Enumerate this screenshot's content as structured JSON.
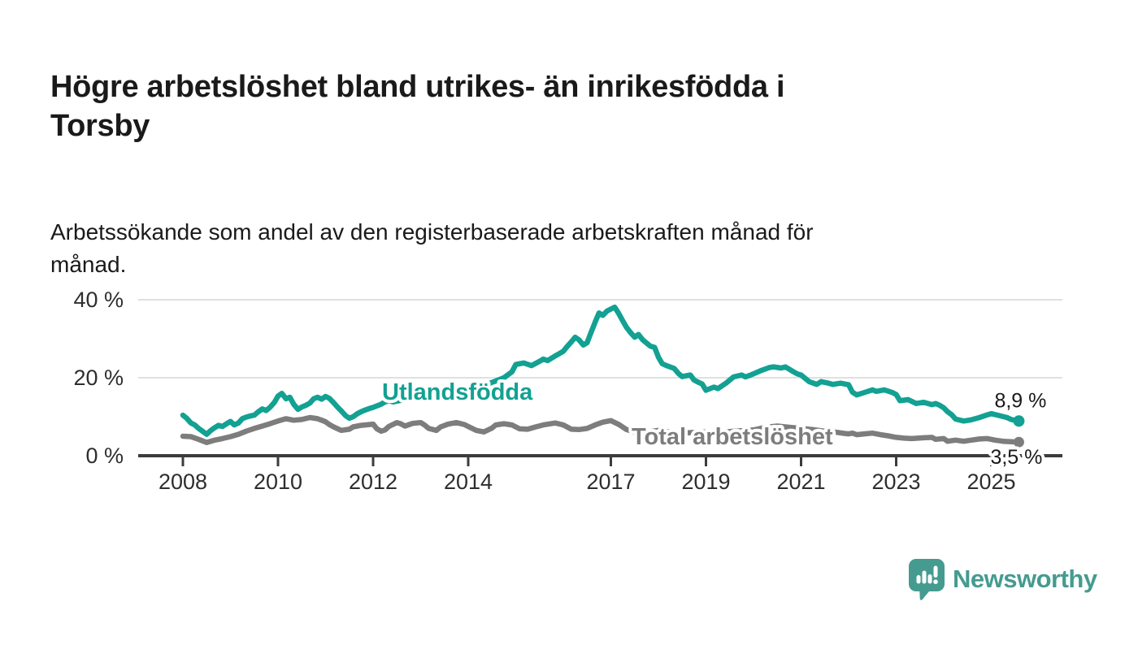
{
  "title": {
    "lines": [
      "Högre arbetslöshet bland utrikes- än inrikesfödda i",
      "Torsby"
    ]
  },
  "subtitle": {
    "lines": [
      "Arbetssökande som andel av den registerbaserade arbetskraften månad för",
      "månad."
    ]
  },
  "logo": {
    "brand": "Newsworthy",
    "color": "#459b90"
  },
  "colors": {
    "accent_teal": "#12a192",
    "series_gray": "#7d7d7d",
    "axis": "#3c3c3c",
    "grid": "#e0e0e0",
    "text": "#1a1a1a",
    "tick_text": "#2e2e2e"
  },
  "chart_data": {
    "type": "line",
    "title": "",
    "xlabel": "",
    "ylabel": "",
    "x_domain": [
      2008,
      2025.6
    ],
    "ylim": [
      0,
      42
    ],
    "grid": "horizontal",
    "legend_position": "inline-labels",
    "y_ticks": [
      {
        "v": 0,
        "label": "0 %"
      },
      {
        "v": 20,
        "label": "20 %"
      },
      {
        "v": 40,
        "label": "40 %"
      }
    ],
    "x_ticks": [
      {
        "v": 2008,
        "label": "2008"
      },
      {
        "v": 2010,
        "label": "2010"
      },
      {
        "v": 2012,
        "label": "2012"
      },
      {
        "v": 2014,
        "label": "2014"
      },
      {
        "v": 2017,
        "label": "2017"
      },
      {
        "v": 2019,
        "label": "2019"
      },
      {
        "v": 2021,
        "label": "2021"
      },
      {
        "v": 2023,
        "label": "2023"
      },
      {
        "v": 2025,
        "label": "2025"
      }
    ],
    "series": [
      {
        "name": "Utlandsfödda",
        "color": "#12a192",
        "end_label": "8,9 %",
        "end_value": 8.9,
        "points": [
          [
            2008.0,
            10.4
          ],
          [
            2008.08,
            9.6
          ],
          [
            2008.17,
            8.4
          ],
          [
            2008.25,
            7.9
          ],
          [
            2008.33,
            7.0
          ],
          [
            2008.42,
            6.2
          ],
          [
            2008.5,
            5.5
          ],
          [
            2008.58,
            6.4
          ],
          [
            2008.67,
            7.2
          ],
          [
            2008.75,
            7.8
          ],
          [
            2008.83,
            7.5
          ],
          [
            2008.92,
            8.2
          ],
          [
            2009.0,
            8.8
          ],
          [
            2009.08,
            7.9
          ],
          [
            2009.17,
            8.4
          ],
          [
            2009.25,
            9.5
          ],
          [
            2009.33,
            9.9
          ],
          [
            2009.42,
            10.2
          ],
          [
            2009.5,
            10.4
          ],
          [
            2009.58,
            11.2
          ],
          [
            2009.67,
            12.0
          ],
          [
            2009.75,
            11.6
          ],
          [
            2009.83,
            12.4
          ],
          [
            2009.92,
            13.6
          ],
          [
            2010.0,
            15.3
          ],
          [
            2010.08,
            16.0
          ],
          [
            2010.17,
            14.6
          ],
          [
            2010.25,
            15.0
          ],
          [
            2010.33,
            13.2
          ],
          [
            2010.42,
            11.9
          ],
          [
            2010.5,
            12.5
          ],
          [
            2010.58,
            12.9
          ],
          [
            2010.67,
            13.5
          ],
          [
            2010.75,
            14.6
          ],
          [
            2010.83,
            15.0
          ],
          [
            2010.92,
            14.5
          ],
          [
            2011.0,
            15.2
          ],
          [
            2011.08,
            14.7
          ],
          [
            2011.17,
            13.6
          ],
          [
            2011.25,
            12.5
          ],
          [
            2011.33,
            11.5
          ],
          [
            2011.42,
            10.3
          ],
          [
            2011.5,
            9.6
          ],
          [
            2011.58,
            10.0
          ],
          [
            2011.67,
            10.8
          ],
          [
            2011.75,
            11.3
          ],
          [
            2011.83,
            11.7
          ],
          [
            2011.92,
            12.1
          ],
          [
            2012.0,
            12.4
          ],
          [
            2012.08,
            12.8
          ],
          [
            2012.17,
            13.2
          ],
          [
            2012.25,
            13.8
          ],
          [
            2012.33,
            14.1
          ],
          [
            2012.42,
            13.8
          ],
          [
            2012.5,
            14.0
          ],
          [
            2012.67,
            14.4
          ],
          [
            2012.83,
            14.7
          ],
          [
            2013.0,
            15.0
          ],
          [
            2013.25,
            15.4
          ],
          [
            2013.5,
            15.8
          ],
          [
            2013.75,
            16.3
          ],
          [
            2014.0,
            17.0
          ],
          [
            2014.25,
            17.8
          ],
          [
            2014.5,
            18.8
          ],
          [
            2014.75,
            20.0
          ],
          [
            2014.92,
            21.5
          ],
          [
            2015.0,
            23.4
          ],
          [
            2015.17,
            23.8
          ],
          [
            2015.33,
            23.1
          ],
          [
            2015.5,
            24.2
          ],
          [
            2015.58,
            24.8
          ],
          [
            2015.67,
            24.4
          ],
          [
            2015.83,
            25.6
          ],
          [
            2015.92,
            26.2
          ],
          [
            2016.0,
            26.8
          ],
          [
            2016.08,
            28.0
          ],
          [
            2016.17,
            29.2
          ],
          [
            2016.25,
            30.4
          ],
          [
            2016.33,
            29.7
          ],
          [
            2016.42,
            28.4
          ],
          [
            2016.5,
            29.0
          ],
          [
            2016.58,
            31.5
          ],
          [
            2016.67,
            34.3
          ],
          [
            2016.75,
            36.6
          ],
          [
            2016.83,
            36.0
          ],
          [
            2016.92,
            37.1
          ],
          [
            2017.0,
            37.6
          ],
          [
            2017.08,
            38.1
          ],
          [
            2017.17,
            36.4
          ],
          [
            2017.25,
            34.6
          ],
          [
            2017.33,
            32.9
          ],
          [
            2017.42,
            31.5
          ],
          [
            2017.5,
            30.4
          ],
          [
            2017.58,
            31.1
          ],
          [
            2017.67,
            29.7
          ],
          [
            2017.75,
            28.9
          ],
          [
            2017.83,
            28.1
          ],
          [
            2017.92,
            27.8
          ],
          [
            2018.0,
            25.3
          ],
          [
            2018.08,
            23.6
          ],
          [
            2018.17,
            23.1
          ],
          [
            2018.33,
            22.4
          ],
          [
            2018.42,
            21.1
          ],
          [
            2018.5,
            20.3
          ],
          [
            2018.67,
            20.7
          ],
          [
            2018.75,
            19.4
          ],
          [
            2018.83,
            18.9
          ],
          [
            2018.92,
            18.4
          ],
          [
            2019.0,
            16.8
          ],
          [
            2019.17,
            17.6
          ],
          [
            2019.25,
            17.2
          ],
          [
            2019.42,
            18.6
          ],
          [
            2019.58,
            20.2
          ],
          [
            2019.75,
            20.7
          ],
          [
            2019.83,
            20.2
          ],
          [
            2019.92,
            20.6
          ],
          [
            2020.0,
            21.0
          ],
          [
            2020.17,
            21.9
          ],
          [
            2020.33,
            22.6
          ],
          [
            2020.42,
            22.8
          ],
          [
            2020.58,
            22.5
          ],
          [
            2020.67,
            22.8
          ],
          [
            2020.83,
            21.6
          ],
          [
            2020.92,
            21.0
          ],
          [
            2021.0,
            20.7
          ],
          [
            2021.17,
            19.0
          ],
          [
            2021.33,
            18.3
          ],
          [
            2021.42,
            19.0
          ],
          [
            2021.58,
            18.6
          ],
          [
            2021.67,
            18.3
          ],
          [
            2021.83,
            18.6
          ],
          [
            2021.92,
            18.4
          ],
          [
            2022.0,
            18.2
          ],
          [
            2022.08,
            16.3
          ],
          [
            2022.17,
            15.6
          ],
          [
            2022.33,
            16.2
          ],
          [
            2022.5,
            16.9
          ],
          [
            2022.58,
            16.5
          ],
          [
            2022.75,
            16.9
          ],
          [
            2022.92,
            16.2
          ],
          [
            2023.0,
            15.7
          ],
          [
            2023.08,
            14.1
          ],
          [
            2023.25,
            14.4
          ],
          [
            2023.42,
            13.4
          ],
          [
            2023.58,
            13.7
          ],
          [
            2023.75,
            13.1
          ],
          [
            2023.83,
            13.4
          ],
          [
            2023.92,
            12.9
          ],
          [
            2024.0,
            12.3
          ],
          [
            2024.08,
            11.3
          ],
          [
            2024.17,
            10.5
          ],
          [
            2024.25,
            9.4
          ],
          [
            2024.42,
            8.9
          ],
          [
            2024.58,
            9.2
          ],
          [
            2024.75,
            9.8
          ],
          [
            2024.92,
            10.5
          ],
          [
            2025.0,
            10.8
          ],
          [
            2025.17,
            10.3
          ],
          [
            2025.33,
            9.8
          ],
          [
            2025.42,
            9.3
          ],
          [
            2025.58,
            8.9
          ]
        ]
      },
      {
        "name": "Total arbetslöshet",
        "color": "#7d7d7d",
        "end_label": "3,5 %",
        "end_value": 3.5,
        "points": [
          [
            2008.0,
            5.0
          ],
          [
            2008.17,
            4.9
          ],
          [
            2008.33,
            4.2
          ],
          [
            2008.5,
            3.4
          ],
          [
            2008.67,
            4.0
          ],
          [
            2008.83,
            4.4
          ],
          [
            2009.0,
            4.9
          ],
          [
            2009.17,
            5.5
          ],
          [
            2009.33,
            6.3
          ],
          [
            2009.5,
            7.0
          ],
          [
            2009.67,
            7.6
          ],
          [
            2009.83,
            8.2
          ],
          [
            2010.0,
            8.9
          ],
          [
            2010.17,
            9.5
          ],
          [
            2010.33,
            9.1
          ],
          [
            2010.5,
            9.3
          ],
          [
            2010.67,
            9.8
          ],
          [
            2010.83,
            9.5
          ],
          [
            2010.92,
            9.1
          ],
          [
            2011.0,
            8.7
          ],
          [
            2011.08,
            8.0
          ],
          [
            2011.17,
            7.4
          ],
          [
            2011.33,
            6.5
          ],
          [
            2011.5,
            6.8
          ],
          [
            2011.58,
            7.4
          ],
          [
            2011.75,
            7.8
          ],
          [
            2011.92,
            8.0
          ],
          [
            2012.0,
            8.1
          ],
          [
            2012.08,
            6.9
          ],
          [
            2012.17,
            6.3
          ],
          [
            2012.25,
            6.6
          ],
          [
            2012.33,
            7.5
          ],
          [
            2012.5,
            8.5
          ],
          [
            2012.58,
            8.2
          ],
          [
            2012.67,
            7.6
          ],
          [
            2012.83,
            8.3
          ],
          [
            2013.0,
            8.5
          ],
          [
            2013.08,
            7.9
          ],
          [
            2013.17,
            7.0
          ],
          [
            2013.33,
            6.5
          ],
          [
            2013.42,
            7.4
          ],
          [
            2013.58,
            8.1
          ],
          [
            2013.75,
            8.5
          ],
          [
            2013.92,
            8.0
          ],
          [
            2014.0,
            7.5
          ],
          [
            2014.17,
            6.5
          ],
          [
            2014.33,
            6.1
          ],
          [
            2014.5,
            7.1
          ],
          [
            2014.58,
            7.9
          ],
          [
            2014.75,
            8.2
          ],
          [
            2014.92,
            7.9
          ],
          [
            2015.08,
            6.9
          ],
          [
            2015.25,
            6.8
          ],
          [
            2015.42,
            7.4
          ],
          [
            2015.58,
            7.9
          ],
          [
            2015.83,
            8.4
          ],
          [
            2016.0,
            7.9
          ],
          [
            2016.17,
            6.8
          ],
          [
            2016.33,
            6.7
          ],
          [
            2016.5,
            7.0
          ],
          [
            2016.67,
            7.9
          ],
          [
            2016.83,
            8.6
          ],
          [
            2017.0,
            9.0
          ],
          [
            2017.17,
            8.0
          ],
          [
            2017.33,
            6.7
          ],
          [
            2017.5,
            6.1
          ],
          [
            2017.67,
            6.0
          ],
          [
            2017.83,
            6.2
          ],
          [
            2018.0,
            6.5
          ],
          [
            2018.25,
            6.1
          ],
          [
            2018.5,
            5.8
          ],
          [
            2018.75,
            6.0
          ],
          [
            2019.0,
            6.1
          ],
          [
            2019.25,
            5.9
          ],
          [
            2019.5,
            6.2
          ],
          [
            2019.75,
            6.4
          ],
          [
            2020.0,
            6.6
          ],
          [
            2020.25,
            7.3
          ],
          [
            2020.5,
            7.6
          ],
          [
            2020.75,
            7.3
          ],
          [
            2021.0,
            7.0
          ],
          [
            2021.25,
            6.7
          ],
          [
            2021.5,
            6.3
          ],
          [
            2021.75,
            6.0
          ],
          [
            2021.92,
            5.7
          ],
          [
            2022.0,
            5.6
          ],
          [
            2022.08,
            5.8
          ],
          [
            2022.17,
            5.4
          ],
          [
            2022.33,
            5.6
          ],
          [
            2022.5,
            5.8
          ],
          [
            2022.67,
            5.4
          ],
          [
            2022.83,
            5.1
          ],
          [
            2023.0,
            4.7
          ],
          [
            2023.17,
            4.5
          ],
          [
            2023.33,
            4.4
          ],
          [
            2023.58,
            4.6
          ],
          [
            2023.75,
            4.7
          ],
          [
            2023.83,
            4.2
          ],
          [
            2024.0,
            4.4
          ],
          [
            2024.08,
            3.7
          ],
          [
            2024.25,
            4.0
          ],
          [
            2024.42,
            3.7
          ],
          [
            2024.58,
            4.0
          ],
          [
            2024.75,
            4.3
          ],
          [
            2024.92,
            4.4
          ],
          [
            2025.08,
            4.0
          ],
          [
            2025.25,
            3.7
          ],
          [
            2025.42,
            3.6
          ],
          [
            2025.58,
            3.5
          ]
        ]
      }
    ]
  }
}
